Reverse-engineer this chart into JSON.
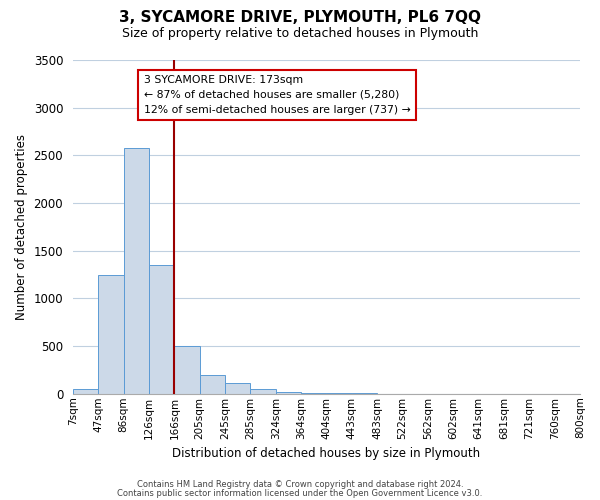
{
  "title": "3, SYCAMORE DRIVE, PLYMOUTH, PL6 7QQ",
  "subtitle": "Size of property relative to detached houses in Plymouth",
  "xlabel": "Distribution of detached houses by size in Plymouth",
  "ylabel": "Number of detached properties",
  "bar_color": "#ccd9e8",
  "bar_edge_color": "#5b9bd5",
  "bin_labels": [
    "7sqm",
    "47sqm",
    "86sqm",
    "126sqm",
    "166sqm",
    "205sqm",
    "245sqm",
    "285sqm",
    "324sqm",
    "364sqm",
    "404sqm",
    "443sqm",
    "483sqm",
    "522sqm",
    "562sqm",
    "602sqm",
    "641sqm",
    "681sqm",
    "721sqm",
    "760sqm",
    "800sqm"
  ],
  "bar_heights": [
    50,
    1250,
    2580,
    1350,
    500,
    200,
    110,
    45,
    20,
    10,
    5,
    3,
    2,
    0,
    0,
    0,
    0,
    0,
    0,
    0
  ],
  "ylim": [
    0,
    3500
  ],
  "yticks": [
    0,
    500,
    1000,
    1500,
    2000,
    2500,
    3000,
    3500
  ],
  "vline_x": 4.0,
  "vline_color": "#990000",
  "annotation_text_line1": "3 SYCAMORE DRIVE: 173sqm",
  "annotation_text_line2": "← 87% of detached houses are smaller (5,280)",
  "annotation_text_line3": "12% of semi-detached houses are larger (737) →",
  "annotation_box_color": "#ffffff",
  "annotation_box_edge_color": "#cc0000",
  "footer_line1": "Contains HM Land Registry data © Crown copyright and database right 2024.",
  "footer_line2": "Contains public sector information licensed under the Open Government Licence v3.0.",
  "background_color": "#ffffff",
  "grid_color": "#c0d0e0"
}
